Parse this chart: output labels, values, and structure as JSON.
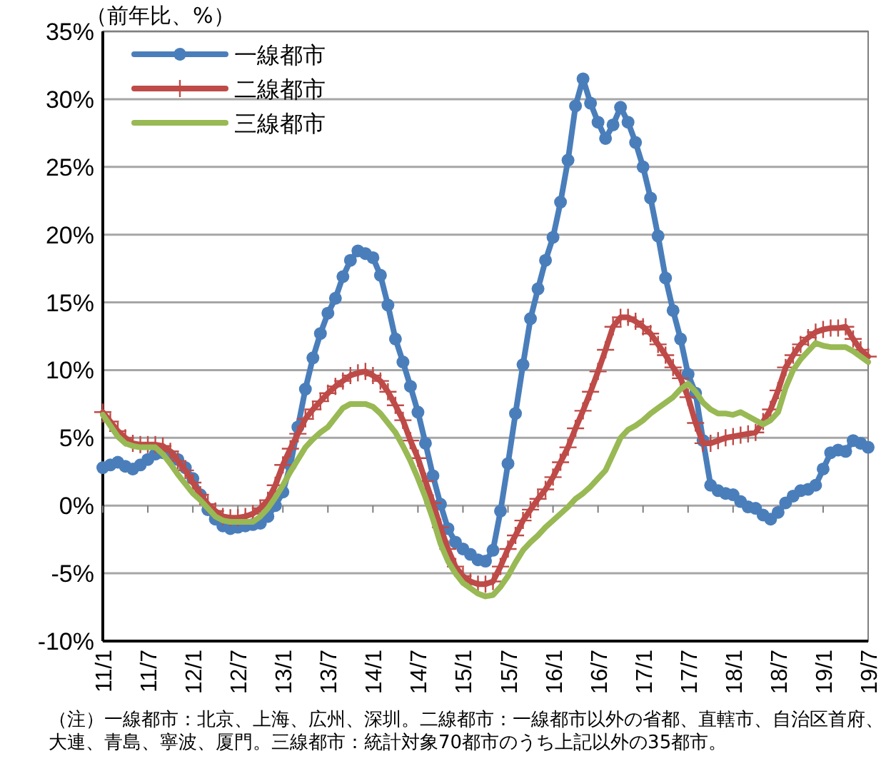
{
  "chart_data": {
    "type": "line",
    "ylabel": "（前年比、%）",
    "categories": [
      "11/1",
      null,
      null,
      null,
      null,
      null,
      "11/7",
      null,
      null,
      null,
      null,
      null,
      "12/1",
      null,
      null,
      null,
      null,
      null,
      "12/7",
      null,
      null,
      null,
      null,
      null,
      "13/1",
      null,
      null,
      null,
      null,
      null,
      "13/7",
      null,
      null,
      null,
      null,
      null,
      "14/1",
      null,
      null,
      null,
      null,
      null,
      "14/7",
      null,
      null,
      null,
      null,
      null,
      "15/1",
      null,
      null,
      null,
      null,
      null,
      "15/7",
      null,
      null,
      null,
      null,
      null,
      "16/1",
      null,
      null,
      null,
      null,
      null,
      "16/7",
      null,
      null,
      null,
      null,
      null,
      "17/1",
      null,
      null,
      null,
      null,
      null,
      "17/7",
      null,
      null,
      null,
      null,
      null,
      "18/1",
      null,
      null,
      null,
      null,
      null,
      "18/7",
      null,
      null,
      null,
      null,
      null,
      "19/1",
      null,
      null,
      null,
      null,
      null,
      "19/7"
    ],
    "series": [
      {
        "name": "一線都市",
        "color": "#4a7ebb",
        "marker": "circle",
        "values": [
          2.8,
          3.0,
          3.2,
          2.9,
          2.7,
          3.0,
          3.4,
          3.8,
          3.9,
          3.7,
          3.4,
          2.8,
          2.0,
          0.8,
          -0.3,
          -1.0,
          -1.5,
          -1.7,
          -1.6,
          -1.5,
          -1.4,
          -1.3,
          -0.8,
          0.0,
          1.0,
          3.0,
          5.8,
          8.6,
          10.9,
          12.7,
          14.2,
          15.3,
          16.9,
          18.1,
          18.8,
          18.6,
          18.3,
          17.0,
          14.8,
          12.3,
          10.6,
          8.8,
          6.9,
          4.6,
          2.2,
          0.1,
          -1.7,
          -2.7,
          -3.2,
          -3.6,
          -4.0,
          -4.1,
          -3.3,
          -0.4,
          3.1,
          6.8,
          10.4,
          13.8,
          16.0,
          18.1,
          19.8,
          22.4,
          25.5,
          29.5,
          31.5,
          29.7,
          28.3,
          27.1,
          28.1,
          29.4,
          28.3,
          26.8,
          25.0,
          22.7,
          19.9,
          16.8,
          14.4,
          12.3,
          9.7,
          8.3,
          4.8,
          1.5,
          1.1,
          0.9,
          0.8,
          0.3,
          -0.1,
          -0.2,
          -0.7,
          -1.0,
          -0.5,
          0.2,
          0.7,
          1.1,
          1.2,
          1.5,
          2.7,
          3.9,
          4.1,
          4.0,
          4.8,
          4.6,
          4.3
        ]
      },
      {
        "name": "二線都市",
        "color": "#be4b48",
        "marker": "cross",
        "values": [
          6.9,
          6.2,
          5.5,
          5.0,
          4.6,
          4.5,
          4.5,
          4.5,
          4.4,
          4.0,
          3.3,
          2.6,
          1.7,
          0.8,
          0.1,
          -0.4,
          -0.8,
          -0.9,
          -0.9,
          -0.8,
          -0.6,
          -0.2,
          0.4,
          1.5,
          3.0,
          4.2,
          5.3,
          6.4,
          7.1,
          7.7,
          8.3,
          8.8,
          9.2,
          9.6,
          9.8,
          9.9,
          9.6,
          9.2,
          8.4,
          7.4,
          6.3,
          4.8,
          3.5,
          1.8,
          0.2,
          -1.6,
          -3.2,
          -4.5,
          -5.2,
          -5.6,
          -5.8,
          -5.8,
          -5.6,
          -4.5,
          -3.2,
          -2.2,
          -1.1,
          -0.3,
          0.5,
          1.2,
          2.1,
          3.2,
          4.3,
          5.7,
          7.0,
          8.4,
          9.9,
          11.5,
          13.2,
          13.9,
          13.9,
          13.6,
          13.2,
          12.7,
          11.9,
          11.1,
          10.2,
          9.4,
          8.0,
          6.1,
          4.6,
          4.6,
          4.8,
          5.0,
          5.1,
          5.2,
          5.3,
          5.4,
          6.2,
          7.1,
          8.5,
          10.2,
          11.1,
          11.9,
          12.4,
          12.8,
          13.0,
          13.1,
          13.1,
          13.2,
          12.3,
          11.5,
          11.0
        ]
      },
      {
        "name": "三線都市",
        "color": "#98b954",
        "values": [
          6.7,
          5.9,
          5.1,
          4.6,
          4.4,
          4.3,
          4.3,
          4.3,
          3.8,
          3.1,
          2.3,
          1.6,
          0.9,
          0.4,
          -0.2,
          -0.8,
          -1.1,
          -1.2,
          -1.2,
          -1.2,
          -1.2,
          -0.8,
          -0.2,
          0.6,
          1.5,
          2.5,
          3.4,
          4.3,
          4.9,
          5.4,
          5.8,
          6.5,
          7.2,
          7.5,
          7.5,
          7.5,
          7.3,
          6.8,
          6.1,
          5.4,
          4.4,
          3.3,
          2.0,
          0.6,
          -1.0,
          -2.8,
          -4.1,
          -5.0,
          -5.7,
          -6.1,
          -6.5,
          -6.7,
          -6.6,
          -6.0,
          -5.2,
          -4.2,
          -3.3,
          -2.7,
          -2.2,
          -1.6,
          -1.1,
          -0.6,
          -0.1,
          0.5,
          0.9,
          1.4,
          2.0,
          2.6,
          3.8,
          5.0,
          5.6,
          5.9,
          6.3,
          6.8,
          7.2,
          7.6,
          8.0,
          8.6,
          9.0,
          8.4,
          7.6,
          7.1,
          6.8,
          6.8,
          6.7,
          6.9,
          6.6,
          6.3,
          6.0,
          6.3,
          6.9,
          8.7,
          10.0,
          10.8,
          11.4,
          12.0,
          11.8,
          11.7,
          11.7,
          11.7,
          11.4,
          11.0,
          10.6
        ]
      }
    ],
    "ylim": [
      -10,
      35
    ],
    "yticks": [
      {
        "value": -10,
        "label": "-10%"
      },
      {
        "value": -5,
        "label": "-5%"
      },
      {
        "value": 0,
        "label": "0%"
      },
      {
        "value": 5,
        "label": "5%"
      },
      {
        "value": 10,
        "label": "10%"
      },
      {
        "value": 15,
        "label": "15%"
      },
      {
        "value": 20,
        "label": "20%"
      },
      {
        "value": 25,
        "label": "25%"
      },
      {
        "value": 30,
        "label": "30%"
      },
      {
        "value": 35,
        "label": "35%"
      }
    ],
    "grid": "y",
    "legend": "top left",
    "annotations": [
      "（注）一線都市：北京、上海、広州、深圳。二線都市：一線都市以外の省都、直轄市、自治区首府、大連、青島、寧波、厦門。三線都市：統計対象70都市のうち上記以外の35都市。"
    ]
  }
}
